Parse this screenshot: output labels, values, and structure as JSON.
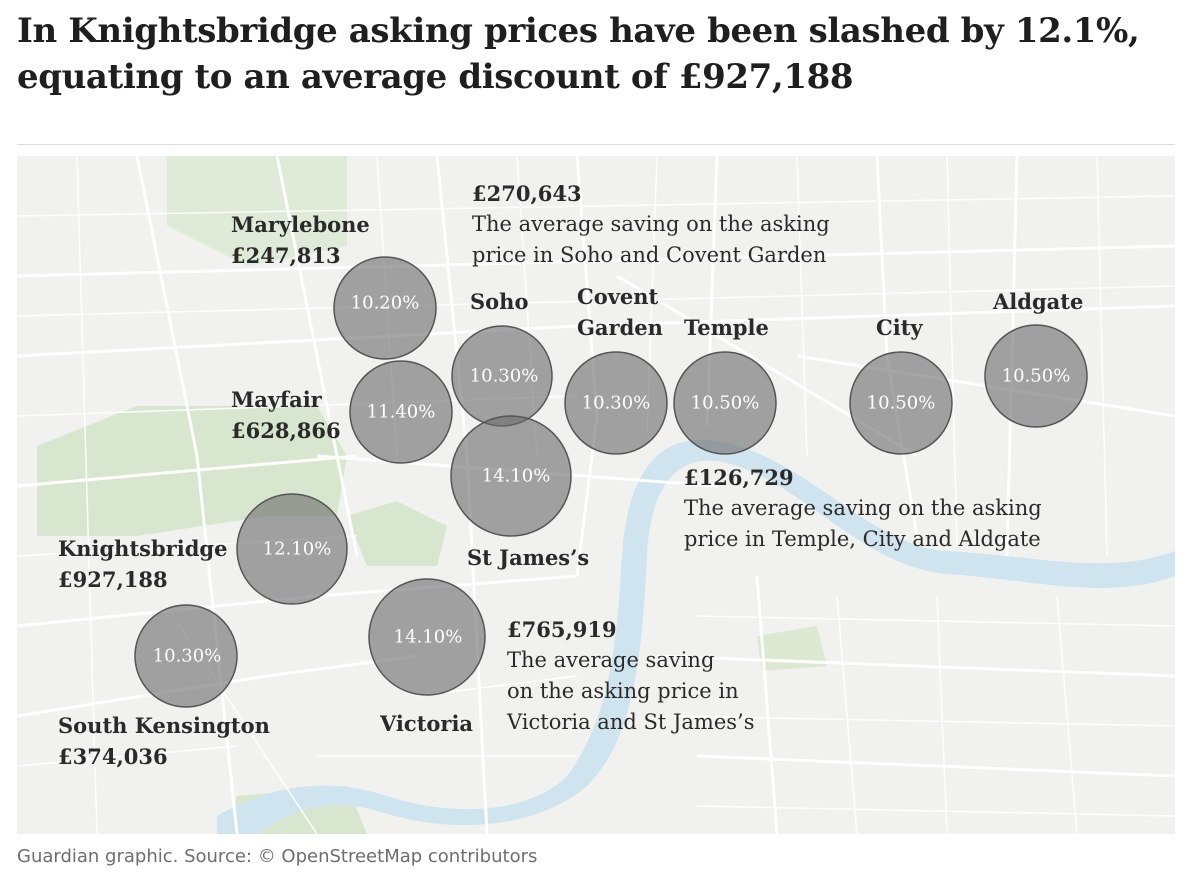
{
  "headline": {
    "line1": "In Knightsbridge asking prices have been slashed by 12.1%,",
    "line2": "equating to an average discount of £927,188"
  },
  "areas": [
    {
      "name": "Marylebone",
      "saving": "£247,813",
      "pct": "10.20%"
    },
    {
      "name": "Mayfair",
      "saving": "£628,866",
      "pct": "11.40%"
    },
    {
      "name": "Soho",
      "pct": "10.30%"
    },
    {
      "name": "Covent",
      "name2": "Garden",
      "pct": "10.30%"
    },
    {
      "name": "Temple",
      "pct": "10.50%"
    },
    {
      "name": "City",
      "pct": "10.50%"
    },
    {
      "name": "Aldgate",
      "pct": "10.50%"
    },
    {
      "name": "St James’s",
      "pct": "14.10%"
    },
    {
      "name": "Knightsbridge",
      "saving": "£927,188",
      "pct": "12.10%"
    },
    {
      "name": "South Kensington",
      "saving": "£374,036",
      "pct": "10.30%"
    },
    {
      "name": "Victoria",
      "pct": "14.10%"
    }
  ],
  "annotations": [
    {
      "amount": "£270,643",
      "lines": [
        "The average saving on the asking",
        "price in Soho and Covent Garden"
      ]
    },
    {
      "amount": "£126,729",
      "lines": [
        "The average saving on the asking",
        "price in Temple, City and Aldgate"
      ]
    },
    {
      "amount": "£765,919",
      "lines": [
        "The average saving",
        "on the asking price in",
        "Victoria and St James’s"
      ]
    }
  ],
  "colors": {
    "bubble_fill": "#6b6b6b",
    "river": "#cfe4ef",
    "park": "#d9e6cf",
    "roads": "#ffffff"
  },
  "footer": "Guardian graphic. Source: © OpenStreetMap contributors"
}
